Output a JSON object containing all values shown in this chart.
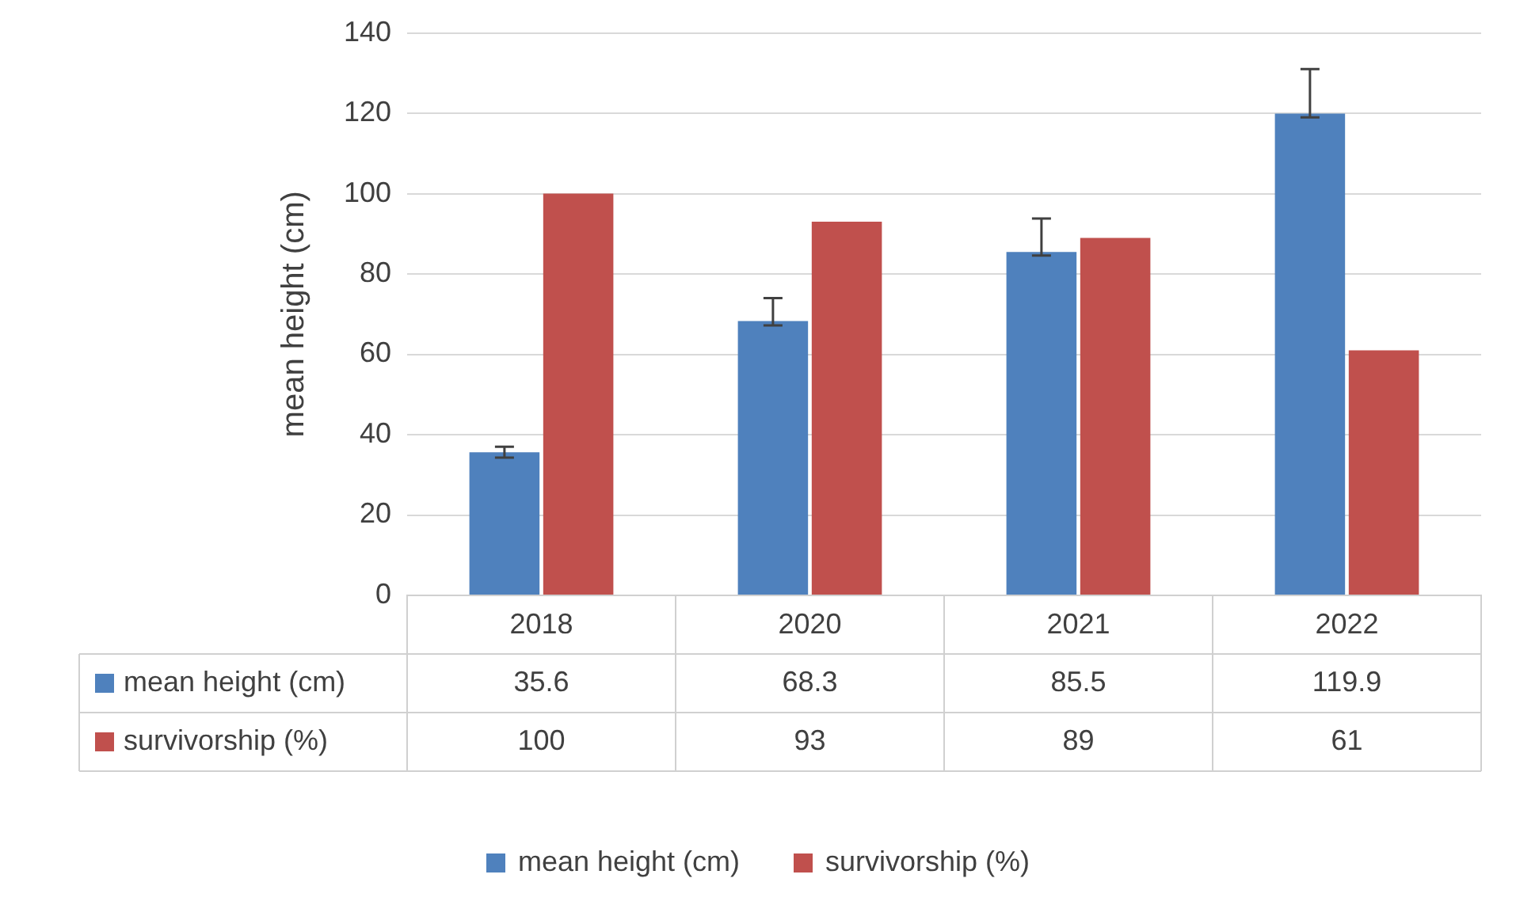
{
  "chart_data": {
    "type": "bar",
    "ylabel": "mean height (cm)",
    "categories": [
      "2018",
      "2020",
      "2021",
      "2022"
    ],
    "series": [
      {
        "name": "mean height (cm)",
        "color": "#4f81bd",
        "values": [
          35.6,
          68.3,
          85.5,
          119.9
        ],
        "errors": [
          [
            34.3,
            37.0
          ],
          [
            67.2,
            74.0
          ],
          [
            84.6,
            93.8
          ],
          [
            119.0,
            131.0
          ]
        ]
      },
      {
        "name": "survivorship (%)",
        "color": "#c0504d",
        "values": [
          100,
          93,
          89,
          61
        ]
      }
    ],
    "ylim": [
      0,
      140
    ],
    "yticks": [
      0,
      20,
      40,
      60,
      80,
      100,
      120,
      140
    ],
    "grid": "y",
    "legend": "bottom",
    "data_labels": true
  }
}
